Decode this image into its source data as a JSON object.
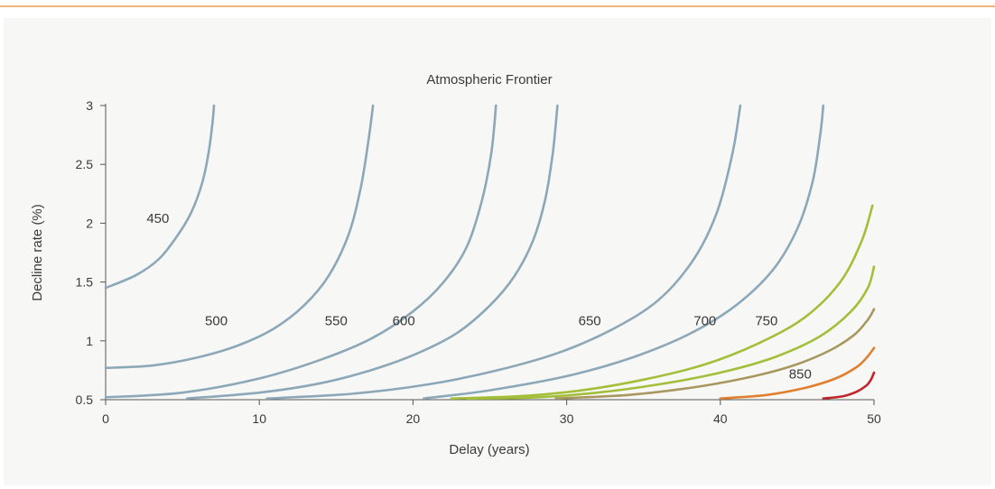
{
  "chart_data": {
    "type": "line",
    "title": "Atmospheric Frontier",
    "xlabel": "Delay (years)",
    "ylabel": "Decline rate (%)",
    "xlim": [
      0,
      50
    ],
    "ylim": [
      0.5,
      3
    ],
    "xticks": [
      "0",
      "10",
      "20",
      "30",
      "40",
      "50"
    ],
    "yticks": [
      "0.5",
      "1",
      "1.5",
      "2",
      "2.5",
      "3"
    ],
    "grid": false,
    "series": [
      {
        "name": "450",
        "color": "#8ca8b8",
        "x": [
          0,
          2,
          3.5,
          4.7,
          5.6,
          6.3,
          6.7,
          6.95,
          7.05
        ],
        "y": [
          1.45,
          1.56,
          1.7,
          1.9,
          2.1,
          2.35,
          2.6,
          2.85,
          3.0
        ]
      },
      {
        "name": "500",
        "color": "#8ca8b8",
        "x": [
          0,
          3,
          6,
          8.6,
          10.9,
          12.9,
          14.5,
          15.8,
          16.6,
          17.1,
          17.4
        ],
        "y": [
          0.77,
          0.79,
          0.86,
          0.96,
          1.1,
          1.3,
          1.55,
          1.9,
          2.3,
          2.7,
          3.0
        ]
      },
      {
        "name": "550",
        "color": "#8ca8b8",
        "x": [
          0,
          5,
          10,
          14,
          17.3,
          20,
          22,
          23.5,
          24.5,
          25.1,
          25.4
        ],
        "y": [
          0.52,
          0.56,
          0.68,
          0.84,
          1.02,
          1.25,
          1.5,
          1.8,
          2.2,
          2.6,
          3.0
        ]
      },
      {
        "name": "600",
        "color": "#8ca8b8",
        "x": [
          5.3,
          10,
          14,
          17.5,
          20.4,
          22.9,
          25,
          26.6,
          27.8,
          28.6,
          29.1,
          29.4
        ],
        "y": [
          0.51,
          0.56,
          0.64,
          0.76,
          0.9,
          1.07,
          1.3,
          1.55,
          1.85,
          2.2,
          2.6,
          3.0
        ]
      },
      {
        "name": "650",
        "color": "#8ca8b8",
        "x": [
          10.5,
          16,
          21,
          25.5,
          29.5,
          33,
          36,
          38.3,
          39.8,
          40.8,
          41.3
        ],
        "y": [
          0.51,
          0.55,
          0.63,
          0.75,
          0.9,
          1.1,
          1.35,
          1.7,
          2.1,
          2.6,
          3.0
        ]
      },
      {
        "name": "700",
        "color": "#8ca8b8",
        "x": [
          20.7,
          25,
          30,
          34.3,
          38,
          41,
          43.4,
          45,
          46,
          46.5,
          46.7
        ],
        "y": [
          0.51,
          0.58,
          0.7,
          0.86,
          1.06,
          1.3,
          1.6,
          1.95,
          2.35,
          2.75,
          3.0
        ]
      },
      {
        "name": "750",
        "color": "#a3bf3a",
        "x": [
          22.5,
          27,
          31,
          35,
          39,
          42.5,
          45.5,
          47.8,
          49.2,
          49.9
        ],
        "y": [
          0.51,
          0.53,
          0.58,
          0.67,
          0.8,
          0.98,
          1.2,
          1.5,
          1.85,
          2.15
        ]
      },
      {
        "name": "",
        "color": "#a3bf3a",
        "x": [
          23.5,
          28,
          32,
          36,
          40,
          43.5,
          46.5,
          48.5,
          49.6,
          50
        ],
        "y": [
          0.51,
          0.52,
          0.56,
          0.63,
          0.73,
          0.86,
          1.04,
          1.25,
          1.45,
          1.63
        ]
      },
      {
        "name": "",
        "color": "#a89860",
        "x": [
          29.3,
          34,
          38,
          41.5,
          44.5,
          47,
          48.7,
          49.6,
          50
        ],
        "y": [
          0.51,
          0.54,
          0.6,
          0.68,
          0.78,
          0.91,
          1.05,
          1.18,
          1.27
        ]
      },
      {
        "name": "850",
        "color": "#e07f2e",
        "x": [
          40,
          43,
          45.5,
          47.5,
          48.9,
          49.6,
          50
        ],
        "y": [
          0.51,
          0.54,
          0.6,
          0.68,
          0.78,
          0.87,
          0.94
        ]
      },
      {
        "name": "",
        "color": "#c0252b",
        "x": [
          46.7,
          48,
          48.9,
          49.5,
          49.8,
          50
        ],
        "y": [
          0.51,
          0.53,
          0.57,
          0.62,
          0.67,
          0.73
        ]
      }
    ],
    "annotations": [
      {
        "text": "450",
        "x": 3.4,
        "y": 2.04
      },
      {
        "text": "500",
        "x": 7.2,
        "y": 1.17
      },
      {
        "text": "550",
        "x": 15.0,
        "y": 1.17
      },
      {
        "text": "600",
        "x": 19.4,
        "y": 1.17
      },
      {
        "text": "650",
        "x": 31.5,
        "y": 1.17
      },
      {
        "text": "700",
        "x": 39.0,
        "y": 1.17
      },
      {
        "text": "750",
        "x": 43.0,
        "y": 1.17
      },
      {
        "text": "850",
        "x": 45.2,
        "y": 0.72
      }
    ]
  }
}
